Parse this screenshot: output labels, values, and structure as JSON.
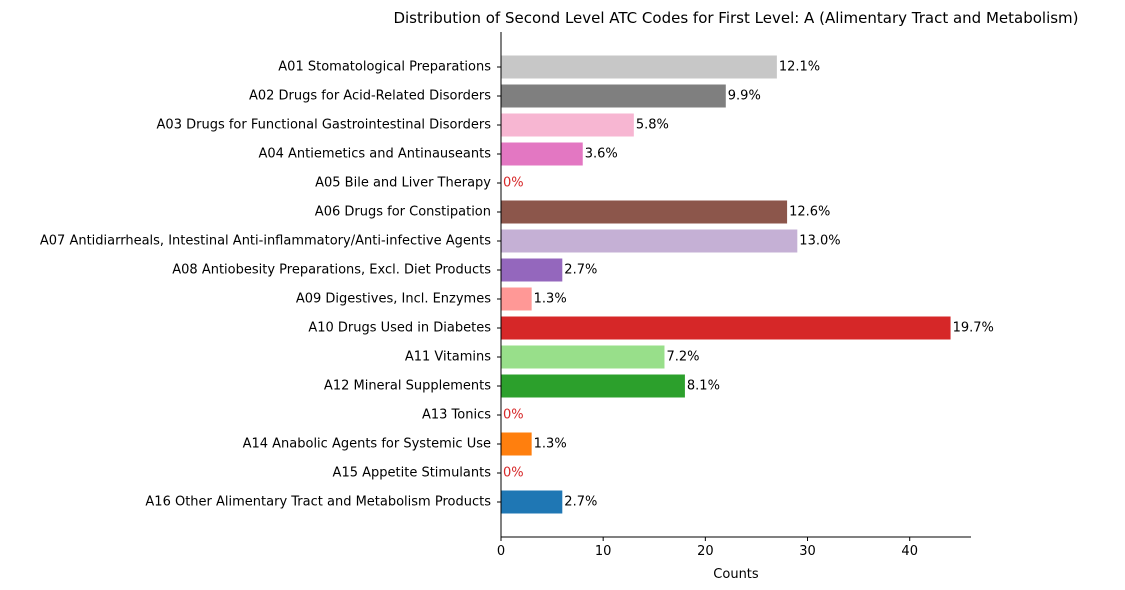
{
  "chart_data": {
    "type": "bar",
    "orientation": "horizontal",
    "title": "Distribution of Second Level ATC Codes for First Level: A (Alimentary Tract and Metabolism)",
    "xlabel": "Counts",
    "ylabel": "",
    "xlim": [
      0,
      46
    ],
    "xticks": [
      0,
      10,
      20,
      30,
      40
    ],
    "grid": false,
    "zero_label_color": "#d62728",
    "categories": [
      "A01 Stomatological Preparations",
      "A02 Drugs for Acid-Related Disorders",
      "A03 Drugs for Functional Gastrointestinal Disorders",
      "A04 Antiemetics and Antinauseants",
      "A05 Bile and Liver Therapy",
      "A06 Drugs for Constipation",
      "A07 Antidiarrheals, Intestinal Anti-inflammatory/Anti-infective Agents",
      "A08 Antiobesity Preparations, Excl. Diet Products",
      "A09 Digestives, Incl. Enzymes",
      "A10 Drugs Used in Diabetes",
      "A11 Vitamins",
      "A12 Mineral Supplements",
      "A13 Tonics",
      "A14 Anabolic Agents for Systemic Use",
      "A15 Appetite Stimulants",
      "A16 Other Alimentary Tract and Metabolism Products"
    ],
    "values": [
      27,
      22,
      13,
      8,
      0,
      28,
      29,
      6,
      3,
      44,
      16,
      18,
      0,
      3,
      0,
      6
    ],
    "labels": [
      "12.1%",
      "9.9%",
      "5.8%",
      "3.6%",
      "0%",
      "12.6%",
      "13.0%",
      "2.7%",
      "1.3%",
      "19.7%",
      "7.2%",
      "8.1%",
      "0%",
      "1.3%",
      "0%",
      "2.7%"
    ],
    "colors": [
      "#c7c7c7",
      "#7f7f7f",
      "#f7b6d2",
      "#e377c2",
      "#c49c94",
      "#8c564b",
      "#c5b0d5",
      "#9467bd",
      "#ff9896",
      "#d62728",
      "#98df8a",
      "#2ca02c",
      "#ffbb78",
      "#ff7f0e",
      "#aec7e8",
      "#1f77b4"
    ]
  }
}
